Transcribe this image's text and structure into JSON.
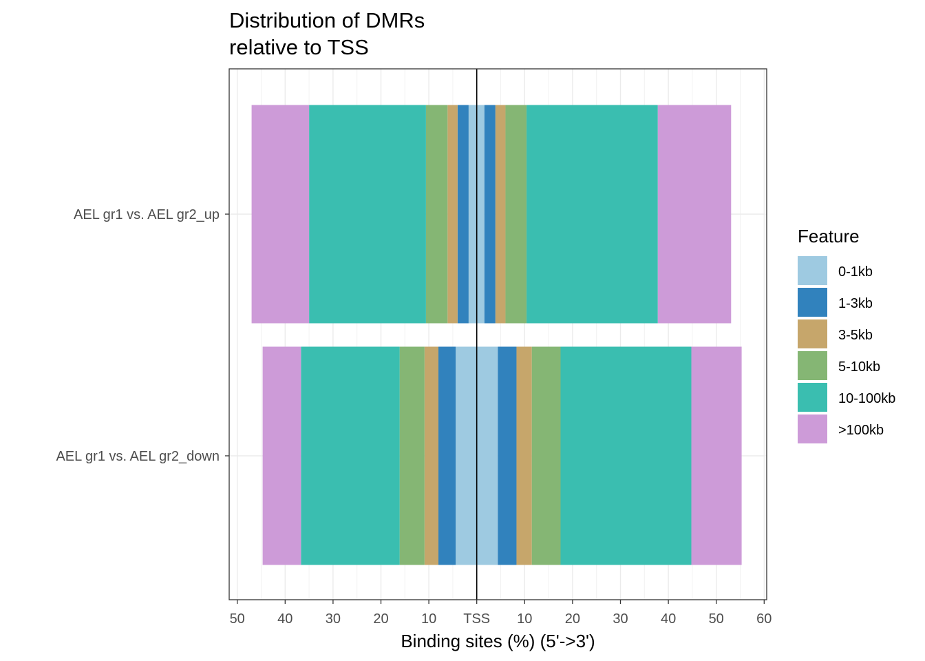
{
  "chart_data": {
    "type": "bar",
    "orientation": "horizontal",
    "stacked": "diverging",
    "title": [
      "Distribution of DMRs",
      "relative to TSS"
    ],
    "xlabel": "Binding sites (%) (5'->3')",
    "ylabel": "",
    "xlim": [
      -50,
      60
    ],
    "x_ticks": [
      -50,
      -40,
      -30,
      -20,
      -10,
      0,
      10,
      20,
      30,
      40,
      50,
      60
    ],
    "x_tick_labels": [
      "50",
      "40",
      "30",
      "20",
      "10",
      "TSS",
      "10",
      "20",
      "30",
      "40",
      "50",
      "60"
    ],
    "categories": [
      "AEL gr1 vs. AEL gr2_up",
      "AEL gr1 vs. AEL gr2_down"
    ],
    "legend_title": "Feature",
    "legend_position": "right",
    "grid": true,
    "series": [
      {
        "name": "0-1kb",
        "color": "#9ECAE1",
        "upstream": [
          1.7,
          4.4
        ],
        "downstream": [
          1.6,
          4.4
        ]
      },
      {
        "name": "1-3kb",
        "color": "#3182BD",
        "upstream": [
          2.3,
          3.6
        ],
        "downstream": [
          2.3,
          3.9
        ]
      },
      {
        "name": "3-5kb",
        "color": "#C6A66B",
        "upstream": [
          2.1,
          2.9
        ],
        "downstream": [
          2.1,
          3.2
        ]
      },
      {
        "name": "5-10kb",
        "color": "#85B674",
        "upstream": [
          4.5,
          5.2
        ],
        "downstream": [
          4.4,
          6.0
        ]
      },
      {
        "name": "10-100kb",
        "color": "#3ABEB0",
        "upstream": [
          24.4,
          20.6
        ],
        "downstream": [
          27.4,
          27.3
        ]
      },
      {
        "name": ">100kb",
        "color": "#CD9BD8",
        "upstream": [
          12.0,
          8.0
        ],
        "downstream": [
          15.3,
          10.5
        ]
      }
    ]
  }
}
